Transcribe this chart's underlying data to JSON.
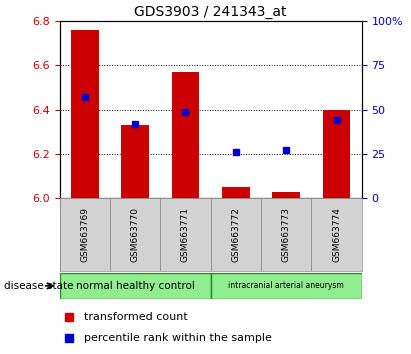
{
  "title": "GDS3903 / 241343_at",
  "samples": [
    "GSM663769",
    "GSM663770",
    "GSM663771",
    "GSM663772",
    "GSM663773",
    "GSM663774"
  ],
  "transformed_count": [
    6.76,
    6.33,
    6.57,
    6.05,
    6.03,
    6.4
  ],
  "percentile_rank": [
    57,
    42,
    49,
    26,
    27,
    44
  ],
  "ymin": 6.0,
  "ymax": 6.8,
  "y_ticks_left": [
    6.0,
    6.2,
    6.4,
    6.6,
    6.8
  ],
  "y_ticks_right": [
    0,
    25,
    50,
    75,
    100
  ],
  "bar_color": "#cc0000",
  "marker_color": "#0000cc",
  "group1_label": "normal healthy control",
  "group1_color": "#90ee90",
  "group2_label": "intracranial arterial aneurysm",
  "group2_color": "#90ee90",
  "disease_state_label": "disease state",
  "legend_bar_label": "transformed count",
  "legend_marker_label": "percentile rank within the sample",
  "plot_bg_color": "#ffffff",
  "sample_box_color": "#d3d3d3",
  "sample_box_edge": "#888888",
  "green_border": "#228B22",
  "grid_style": "dotted",
  "grid_color": "black",
  "grid_lw": 0.7
}
